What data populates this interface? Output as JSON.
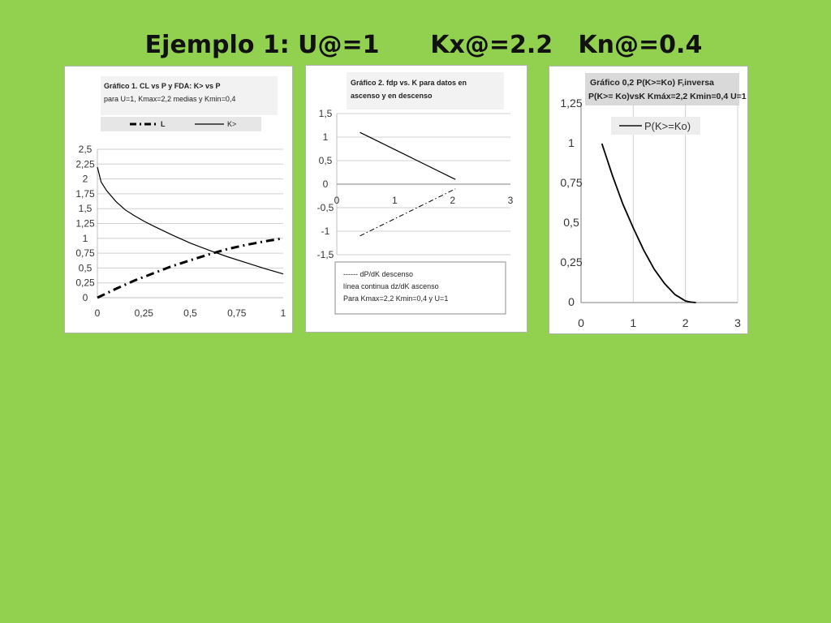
{
  "slide": {
    "title": "Ejemplo 1: U@=1      Kx@=2.2   Kn@=0.4"
  },
  "chart_data": [
    {
      "type": "line",
      "title": "Gráfico 1.  CL vs P    y     FDA: K> vs P",
      "subtitle": "para U=1, Kmax=2,2 medias y Kmin=0,4",
      "xlabel": "",
      "ylabel": "",
      "xlim": [
        0,
        1
      ],
      "ylim": [
        0,
        2.5
      ],
      "xticks": [
        "0",
        "0,25",
        "0,5",
        "0,75",
        "1"
      ],
      "yticks": [
        "0",
        "0,25",
        "0,5",
        "0,75",
        "1",
        "1,25",
        "1,5",
        "1,75",
        "2",
        "2,25",
        "2,5"
      ],
      "grid": "horizontal",
      "legend": {
        "placement": "top",
        "entries": [
          "L",
          "K>"
        ]
      },
      "series": [
        {
          "name": "L",
          "style": "dash-dot",
          "x": [
            0,
            0.1,
            0.2,
            0.3,
            0.4,
            0.5,
            0.6,
            0.7,
            0.8,
            0.9,
            1.0
          ],
          "y": [
            0,
            0.15,
            0.29,
            0.41,
            0.53,
            0.63,
            0.73,
            0.82,
            0.89,
            0.95,
            1.0
          ]
        },
        {
          "name": "K>",
          "style": "solid",
          "x": [
            0,
            0.02,
            0.05,
            0.1,
            0.15,
            0.2,
            0.25,
            0.3,
            0.4,
            0.5,
            0.6,
            0.7,
            0.8,
            0.9,
            1.0
          ],
          "y": [
            2.2,
            1.95,
            1.8,
            1.62,
            1.48,
            1.38,
            1.29,
            1.21,
            1.06,
            0.92,
            0.8,
            0.69,
            0.59,
            0.49,
            0.4
          ]
        }
      ]
    },
    {
      "type": "line",
      "title": "Gráfico 2. fdp vs. K para datos en",
      "subtitle": "ascenso y en descenso",
      "xlabel": "",
      "ylabel": "",
      "xlim": [
        0,
        3
      ],
      "ylim": [
        -1.5,
        1.5
      ],
      "xticks": [
        "0",
        "1",
        "2",
        "3"
      ],
      "yticks": [
        "-1,5",
        "-1",
        "-0,5",
        "0",
        "0,5",
        "1",
        "1,5"
      ],
      "grid": "horizontal",
      "notes": [
        "------ dP/dK descenso",
        "línea continua dz/dK ascenso",
        "Para Kmax=2,2  Kmin=0,4 y U=1"
      ],
      "series": [
        {
          "style": "solid",
          "x": [
            0.4,
            2.05
          ],
          "y": [
            1.1,
            0.1
          ]
        },
        {
          "style": "dash-dot",
          "x": [
            0.4,
            2.05
          ],
          "y": [
            -1.1,
            -0.1
          ]
        }
      ]
    },
    {
      "type": "line",
      "title": "Gráfico 0,2    P(K>=Ko)    F,inversa",
      "subtitle": "P(K>= Ko)vsK Kmáx=2,2  Kmin=0,4 U=1",
      "xlabel": "",
      "ylabel": "",
      "xlim": [
        0,
        3
      ],
      "ylim": [
        0,
        1.25
      ],
      "xticks": [
        "0",
        "1",
        "2",
        "3"
      ],
      "yticks": [
        "0",
        "0,25",
        "0,5",
        "0,75",
        "1",
        "1,25"
      ],
      "grid": "vertical",
      "legend": {
        "placement": "top-left",
        "entries": [
          "P(K>=Ko)"
        ]
      },
      "series": [
        {
          "name": "P(K>=Ko)",
          "style": "solid",
          "x": [
            0.4,
            0.6,
            0.8,
            1.0,
            1.2,
            1.4,
            1.6,
            1.8,
            2.0,
            2.1,
            2.2
          ],
          "y": [
            1.0,
            0.8,
            0.62,
            0.47,
            0.33,
            0.21,
            0.12,
            0.05,
            0.01,
            0.003,
            0
          ]
        }
      ]
    }
  ]
}
